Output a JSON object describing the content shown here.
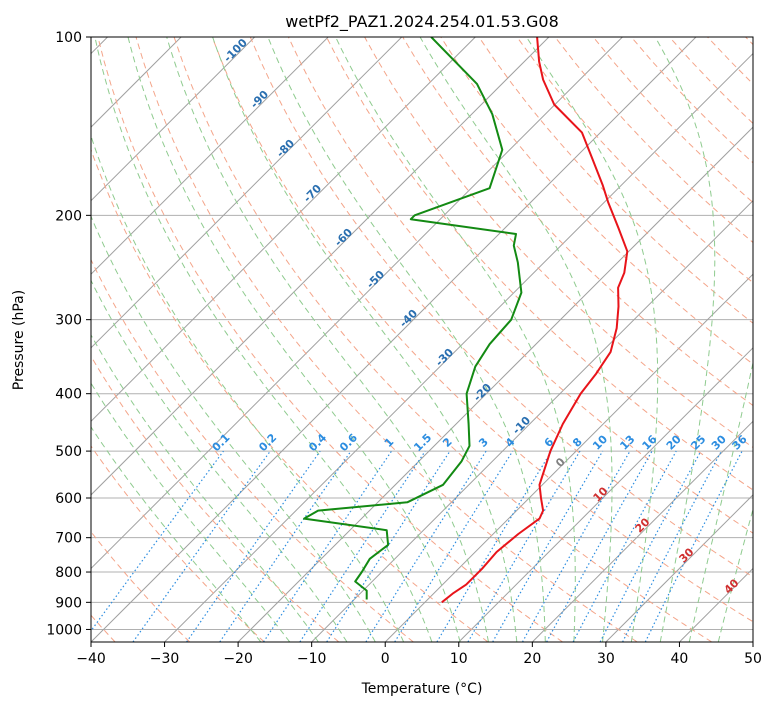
{
  "chart_data": {
    "type": "line",
    "title": "wetPf2_PAZ1.2024.254.01.53.G08",
    "xlabel": "Temperature (°C)",
    "ylabel": "Pressure (hPa)",
    "x_scale": "linear",
    "y_scale": "log (skew-T, inverted)",
    "xlim": [
      -40,
      50
    ],
    "ylim": [
      1050,
      100
    ],
    "x_ticks": [
      "−40",
      "−30",
      "−20",
      "−10",
      "0",
      "10",
      "20",
      "30",
      "40",
      "50"
    ],
    "y_ticks": [
      "100",
      "200",
      "300",
      "400",
      "500",
      "600",
      "700",
      "800",
      "900",
      "1000"
    ],
    "grid": true,
    "colors": {
      "temperature": "#e8141a",
      "dewpoint": "#138a13",
      "isotherm": "#a0a0a0",
      "dry_adiabat": "#f4a58a",
      "moist_adiabat": "#8fcb8f",
      "mixing_ratio": "#2c8de0",
      "dry_label": "#d03030",
      "moist_label": "#2a6fb0",
      "mixing_label": "#2c8de0",
      "ghost_label": "#808080"
    },
    "series": [
      {
        "role": "temperature",
        "points": [
          [
            2.3,
            900
          ],
          [
            2.6,
            870
          ],
          [
            3.2,
            840
          ],
          [
            3.2,
            790
          ],
          [
            2.9,
            740
          ],
          [
            3.4,
            690
          ],
          [
            4.2,
            650
          ],
          [
            3.6,
            630
          ],
          [
            1.6,
            600
          ],
          [
            -0.4,
            570
          ],
          [
            -3.5,
            500
          ],
          [
            -5.5,
            450
          ],
          [
            -7.2,
            400
          ],
          [
            -7.8,
            370
          ],
          [
            -8.8,
            340
          ],
          [
            -11.2,
            310
          ],
          [
            -13.9,
            285
          ],
          [
            -16.5,
            265
          ],
          [
            -17.7,
            250
          ],
          [
            -20.2,
            230
          ],
          [
            -24.6,
            210
          ],
          [
            -29.5,
            190
          ],
          [
            -32.5,
            178
          ],
          [
            -37.7,
            160
          ],
          [
            -42.5,
            145
          ],
          [
            -50.1,
            130
          ],
          [
            -55,
            118
          ],
          [
            -58,
            110
          ],
          [
            -61.6,
            100
          ]
        ]
      },
      {
        "role": "dewpoint",
        "points": [
          [
            -8.3,
            890
          ],
          [
            -9.5,
            860
          ],
          [
            -12.3,
            830
          ],
          [
            -12.7,
            800
          ],
          [
            -13.4,
            760
          ],
          [
            -12.8,
            720
          ],
          [
            -15,
            680
          ],
          [
            -27.8,
            650
          ],
          [
            -27,
            630
          ],
          [
            -16,
            610
          ],
          [
            -13.5,
            570
          ],
          [
            -14.2,
            520
          ],
          [
            -15.2,
            490
          ],
          [
            -18.3,
            450
          ],
          [
            -22.7,
            400
          ],
          [
            -25.2,
            360
          ],
          [
            -26.3,
            330
          ],
          [
            -26.7,
            300
          ],
          [
            -29,
            270
          ],
          [
            -33.6,
            240
          ],
          [
            -36.4,
            225
          ],
          [
            -37.7,
            215
          ],
          [
            -54,
            203
          ],
          [
            -54,
            200
          ],
          [
            -47.5,
            180
          ],
          [
            -51,
            155
          ],
          [
            -57.2,
            135
          ],
          [
            -63.4,
            120
          ],
          [
            -76,
            100
          ]
        ]
      }
    ],
    "dry_adiabat_labels": [
      "0",
      "10",
      "20",
      "30",
      "40"
    ],
    "moist_adiabat_labels": [
      "-100",
      "-90",
      "-80",
      "-70",
      "-60",
      "-50",
      "-40",
      "-30",
      "-20",
      "-10"
    ],
    "mixing_ratio_labels": [
      "0.1",
      "0.2",
      "0.4",
      "0.6",
      "1",
      "1.5",
      "2",
      "3",
      "4",
      "6",
      "8",
      "10",
      "13",
      "16",
      "20",
      "25",
      "30",
      "36"
    ]
  }
}
